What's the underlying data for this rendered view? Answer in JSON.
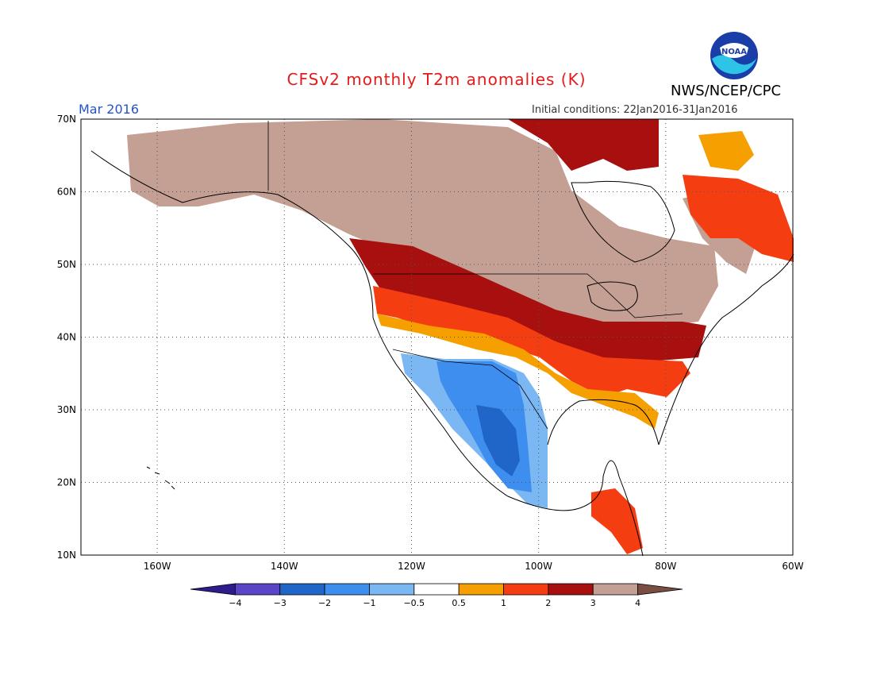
{
  "header": {
    "title": "CFSv2 monthly T2m anomalies (K)",
    "month": "Mar 2016",
    "initial_conditions": "Initial conditions: 22Jan2016-31Jan2016",
    "agency": "NWS/NCEP/CPC",
    "logo_text": "NOAA"
  },
  "map": {
    "lon_range": [
      -172,
      -60
    ],
    "lat_range": [
      10,
      70
    ],
    "lon_labels": [
      "160W",
      "140W",
      "120W",
      "100W",
      "80W",
      "60W"
    ],
    "lat_labels": [
      "70N",
      "60N",
      "50N",
      "40N",
      "30N",
      "20N",
      "10N"
    ],
    "grid": true
  },
  "legend": {
    "colors": [
      "#2e1c8c",
      "#5a44c8",
      "#1f66c8",
      "#3e8ef0",
      "#7bb7f2",
      "#ffffff",
      "#f5a000",
      "#f53d12",
      "#a80f0f",
      "#c49f93",
      "#7a4e42"
    ],
    "labels": [
      "-4",
      "-3",
      "-2",
      "-1",
      "-0.5",
      "0.5",
      "1",
      "2",
      "3",
      "4"
    ]
  }
}
